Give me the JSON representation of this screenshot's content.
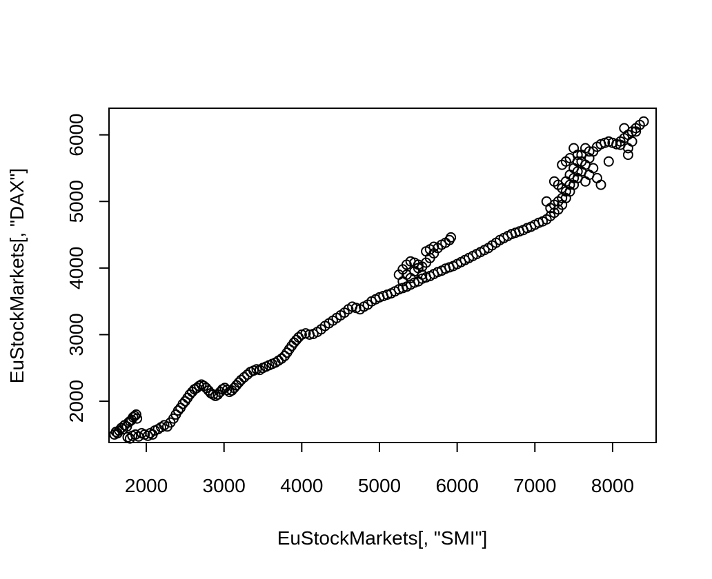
{
  "chart_data": {
    "type": "scatter",
    "title": "",
    "xlabel": "EuStockMarkets[, \"SMI\"]",
    "ylabel": "EuStockMarkets[, \"DAX\"]",
    "xlim": [
      1520,
      8560
    ],
    "ylim": [
      1380,
      6400
    ],
    "xticks": [
      2000,
      3000,
      4000,
      5000,
      6000,
      7000,
      8000
    ],
    "yticks": [
      2000,
      3000,
      4000,
      5000,
      6000
    ],
    "xtick_labels": [
      "2000",
      "3000",
      "4000",
      "5000",
      "6000",
      "7000",
      "8000"
    ],
    "ytick_labels": [
      "2000",
      "3000",
      "4000",
      "5000",
      "6000"
    ],
    "marker": "open-circle",
    "grid": false,
    "legend": "none",
    "points": [
      [
        1590,
        1500
      ],
      [
        1610,
        1540
      ],
      [
        1630,
        1520
      ],
      [
        1650,
        1560
      ],
      [
        1680,
        1600
      ],
      [
        1700,
        1580
      ],
      [
        1720,
        1640
      ],
      [
        1750,
        1620
      ],
      [
        1770,
        1680
      ],
      [
        1790,
        1700
      ],
      [
        1810,
        1720
      ],
      [
        1830,
        1760
      ],
      [
        1850,
        1780
      ],
      [
        1870,
        1800
      ],
      [
        1880,
        1740
      ],
      [
        1760,
        1460
      ],
      [
        1790,
        1440
      ],
      [
        1820,
        1480
      ],
      [
        1860,
        1500
      ],
      [
        1900,
        1470
      ],
      [
        1940,
        1520
      ],
      [
        1980,
        1500
      ],
      [
        2020,
        1480
      ],
      [
        2050,
        1520
      ],
      [
        2080,
        1500
      ],
      [
        2110,
        1560
      ],
      [
        2150,
        1580
      ],
      [
        2190,
        1610
      ],
      [
        2230,
        1640
      ],
      [
        2270,
        1620
      ],
      [
        2310,
        1680
      ],
      [
        2350,
        1740
      ],
      [
        2380,
        1800
      ],
      [
        2410,
        1860
      ],
      [
        2440,
        1900
      ],
      [
        2470,
        1960
      ],
      [
        2500,
        2000
      ],
      [
        2530,
        2050
      ],
      [
        2560,
        2100
      ],
      [
        2590,
        2140
      ],
      [
        2620,
        2180
      ],
      [
        2650,
        2200
      ],
      [
        2680,
        2230
      ],
      [
        2710,
        2250
      ],
      [
        2740,
        2230
      ],
      [
        2770,
        2200
      ],
      [
        2800,
        2160
      ],
      [
        2830,
        2120
      ],
      [
        2860,
        2100
      ],
      [
        2890,
        2080
      ],
      [
        2920,
        2100
      ],
      [
        2950,
        2140
      ],
      [
        2980,
        2180
      ],
      [
        3010,
        2200
      ],
      [
        3040,
        2170
      ],
      [
        3070,
        2140
      ],
      [
        3100,
        2160
      ],
      [
        3130,
        2200
      ],
      [
        3160,
        2240
      ],
      [
        3190,
        2280
      ],
      [
        3220,
        2320
      ],
      [
        3260,
        2360
      ],
      [
        3300,
        2400
      ],
      [
        3340,
        2440
      ],
      [
        3380,
        2460
      ],
      [
        3420,
        2480
      ],
      [
        3460,
        2470
      ],
      [
        3500,
        2500
      ],
      [
        3540,
        2520
      ],
      [
        3580,
        2540
      ],
      [
        3620,
        2560
      ],
      [
        3660,
        2580
      ],
      [
        3700,
        2610
      ],
      [
        3740,
        2640
      ],
      [
        3780,
        2680
      ],
      [
        3810,
        2730
      ],
      [
        3840,
        2780
      ],
      [
        3870,
        2830
      ],
      [
        3900,
        2880
      ],
      [
        3930,
        2920
      ],
      [
        3960,
        2960
      ],
      [
        4000,
        3000
      ],
      [
        4050,
        3020
      ],
      [
        4100,
        3000
      ],
      [
        4150,
        3010
      ],
      [
        4200,
        3040
      ],
      [
        4250,
        3080
      ],
      [
        4300,
        3130
      ],
      [
        4350,
        3170
      ],
      [
        4400,
        3210
      ],
      [
        4450,
        3250
      ],
      [
        4500,
        3290
      ],
      [
        4550,
        3330
      ],
      [
        4600,
        3380
      ],
      [
        4650,
        3420
      ],
      [
        4700,
        3400
      ],
      [
        4750,
        3380
      ],
      [
        4800,
        3420
      ],
      [
        4850,
        3450
      ],
      [
        4900,
        3500
      ],
      [
        4950,
        3530
      ],
      [
        5000,
        3560
      ],
      [
        5050,
        3580
      ],
      [
        5100,
        3600
      ],
      [
        5150,
        3620
      ],
      [
        5200,
        3650
      ],
      [
        5250,
        3680
      ],
      [
        5300,
        3700
      ],
      [
        5350,
        3720
      ],
      [
        5400,
        3750
      ],
      [
        5450,
        3780
      ],
      [
        5500,
        3800
      ],
      [
        5550,
        3840
      ],
      [
        5600,
        3860
      ],
      [
        5650,
        3880
      ],
      [
        5700,
        3910
      ],
      [
        5750,
        3940
      ],
      [
        5800,
        3960
      ],
      [
        5850,
        3990
      ],
      [
        5900,
        4010
      ],
      [
        5950,
        4030
      ],
      [
        6000,
        4060
      ],
      [
        6050,
        4090
      ],
      [
        6100,
        4120
      ],
      [
        6150,
        4150
      ],
      [
        6200,
        4180
      ],
      [
        6250,
        4210
      ],
      [
        6300,
        4240
      ],
      [
        6350,
        4270
      ],
      [
        6400,
        4300
      ],
      [
        6450,
        4340
      ],
      [
        6500,
        4380
      ],
      [
        6550,
        4420
      ],
      [
        6600,
        4450
      ],
      [
        6650,
        4480
      ],
      [
        6700,
        4510
      ],
      [
        6750,
        4530
      ],
      [
        6800,
        4550
      ],
      [
        6850,
        4570
      ],
      [
        6900,
        4600
      ],
      [
        6950,
        4620
      ],
      [
        7000,
        4650
      ],
      [
        7050,
        4680
      ],
      [
        7100,
        4700
      ],
      [
        7150,
        4730
      ],
      [
        7200,
        4780
      ],
      [
        7250,
        4830
      ],
      [
        7300,
        4880
      ],
      [
        7350,
        4950
      ],
      [
        7400,
        5050
      ],
      [
        7450,
        5150
      ],
      [
        7500,
        5250
      ],
      [
        7550,
        5350
      ],
      [
        7600,
        5450
      ],
      [
        7650,
        5550
      ],
      [
        7700,
        5650
      ],
      [
        7750,
        5750
      ],
      [
        7800,
        5820
      ],
      [
        7850,
        5860
      ],
      [
        7900,
        5880
      ],
      [
        7950,
        5900
      ],
      [
        8000,
        5880
      ],
      [
        8050,
        5860
      ],
      [
        8100,
        5900
      ],
      [
        8150,
        5950
      ],
      [
        8200,
        6000
      ],
      [
        8250,
        6050
      ],
      [
        8300,
        6100
      ],
      [
        8350,
        6150
      ],
      [
        8400,
        6200
      ],
      [
        5250,
        3900
      ],
      [
        5300,
        3980
      ],
      [
        5350,
        4050
      ],
      [
        5400,
        4100
      ],
      [
        5450,
        4080
      ],
      [
        5500,
        4050
      ],
      [
        5550,
        4020
      ],
      [
        5600,
        4080
      ],
      [
        5650,
        4150
      ],
      [
        5700,
        4220
      ],
      [
        5750,
        4300
      ],
      [
        5800,
        4350
      ],
      [
        5850,
        4380
      ],
      [
        5900,
        4420
      ],
      [
        5920,
        4460
      ],
      [
        5600,
        4250
      ],
      [
        5650,
        4280
      ],
      [
        5700,
        4320
      ],
      [
        5500,
        4000
      ],
      [
        5450,
        3950
      ],
      [
        5550,
        3900
      ],
      [
        5400,
        3850
      ],
      [
        5350,
        3900
      ],
      [
        5300,
        3800
      ],
      [
        7250,
        5300
      ],
      [
        7300,
        5250
      ],
      [
        7350,
        5200
      ],
      [
        7400,
        5300
      ],
      [
        7450,
        5400
      ],
      [
        7500,
        5500
      ],
      [
        7550,
        5600
      ],
      [
        7600,
        5700
      ],
      [
        7650,
        5800
      ],
      [
        7700,
        5750
      ],
      [
        7600,
        5600
      ],
      [
        7550,
        5450
      ],
      [
        7500,
        5350
      ],
      [
        7450,
        5250
      ],
      [
        7400,
        5150
      ],
      [
        7350,
        5050
      ],
      [
        7300,
        5000
      ],
      [
        7250,
        4950
      ],
      [
        7200,
        4900
      ],
      [
        7150,
        5000
      ],
      [
        7650,
        5300
      ],
      [
        7700,
        5400
      ],
      [
        7750,
        5500
      ],
      [
        7800,
        5350
      ],
      [
        7850,
        5250
      ],
      [
        7500,
        5800
      ],
      [
        7550,
        5700
      ],
      [
        7450,
        5650
      ],
      [
        7400,
        5600
      ],
      [
        7350,
        5550
      ],
      [
        8150,
        6100
      ],
      [
        8200,
        5800
      ],
      [
        8250,
        5900
      ],
      [
        8100,
        5850
      ],
      [
        7950,
        5600
      ],
      [
        8300,
        6050
      ],
      [
        8200,
        5700
      ]
    ]
  }
}
